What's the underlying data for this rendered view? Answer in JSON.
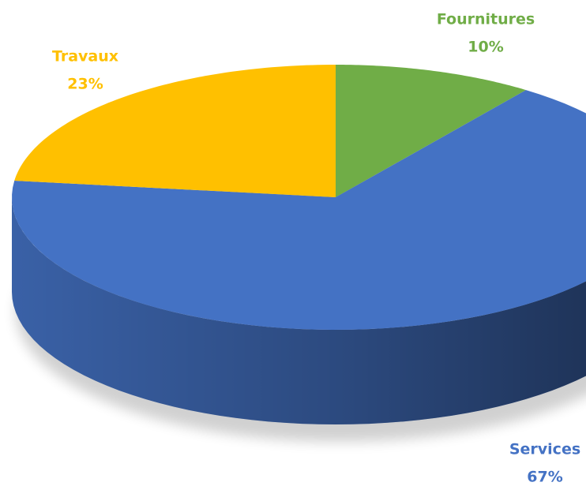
{
  "chart_data": {
    "type": "pie",
    "categories": [
      "Fournitures",
      "Services",
      "Travaux"
    ],
    "values": [
      10,
      67,
      23
    ],
    "value_labels": [
      "10%",
      "67%",
      "23%"
    ],
    "colors": [
      "#70ad47",
      "#4472c4",
      "#ffc000"
    ]
  }
}
